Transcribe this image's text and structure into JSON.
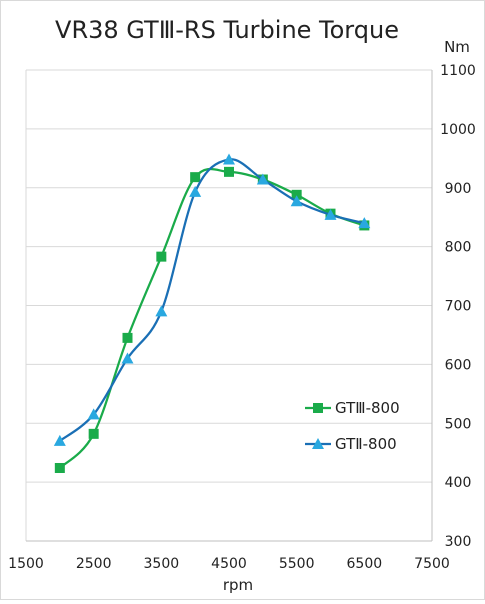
{
  "chart_data": {
    "type": "line",
    "title": "VR38 GTⅢ-RS Turbine Torque",
    "xlabel": "rpm",
    "ylabel": "Nm",
    "xlim": [
      1500,
      7500
    ],
    "ylim": [
      300,
      1100
    ],
    "x_ticks": [
      1500,
      2500,
      3500,
      4500,
      5500,
      6500,
      7500
    ],
    "y_ticks": [
      300,
      400,
      500,
      600,
      700,
      800,
      900,
      1000,
      1100
    ],
    "grid": true,
    "legend_position": "bottom-right",
    "series": [
      {
        "name": "GTⅢ-800",
        "color": "#1aab4a",
        "marker": "square",
        "x": [
          2000,
          2500,
          3000,
          3500,
          4000,
          4500,
          5000,
          5500,
          6000,
          6500
        ],
        "y": [
          424,
          482,
          645,
          783,
          918,
          927,
          914,
          888,
          856,
          836
        ]
      },
      {
        "name": "GTⅡ-800",
        "color": "#1a6fb5",
        "marker": "triangle",
        "marker_color": "#29a8e0",
        "x": [
          2000,
          2500,
          3000,
          3500,
          4000,
          4500,
          5000,
          5500,
          6000,
          6500
        ],
        "y": [
          470,
          515,
          610,
          690,
          893,
          948,
          914,
          877,
          854,
          840
        ]
      }
    ]
  }
}
